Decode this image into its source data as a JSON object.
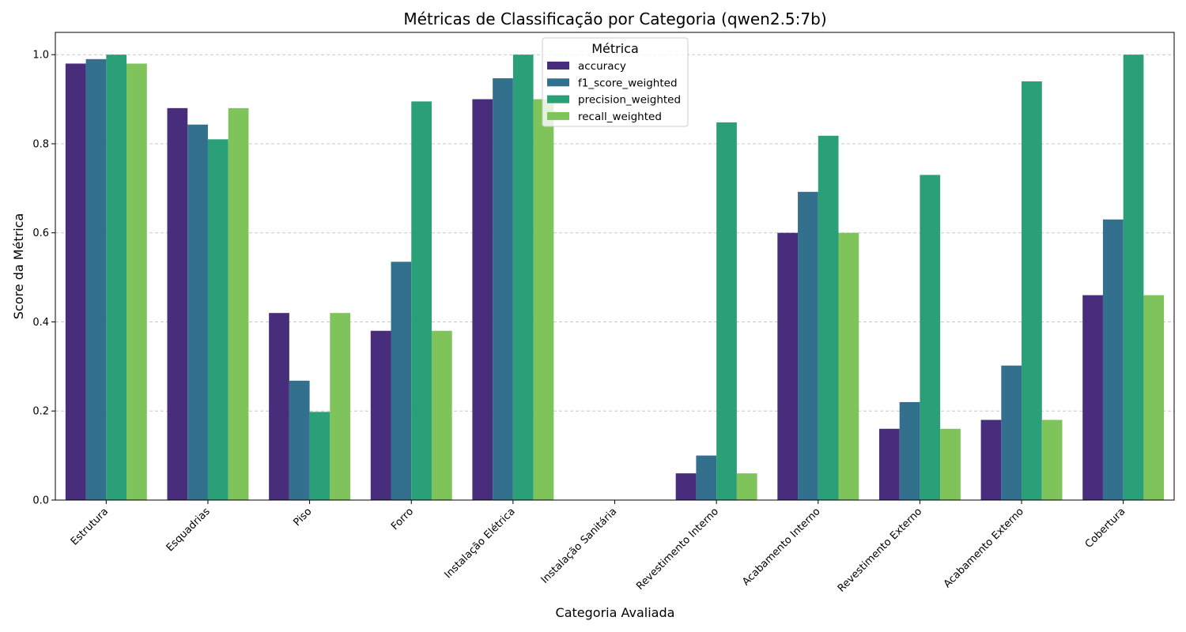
{
  "chart_data": {
    "type": "bar",
    "title": "Métricas de Classificação por Categoria (qwen2.5:7b)",
    "xlabel": "Categoria Avaliada",
    "ylabel": "Score da Métrica",
    "ylim": [
      0,
      1.05
    ],
    "yticks": [
      "0.0",
      "0.2",
      "0.4",
      "0.6",
      "0.8",
      "1.0"
    ],
    "grid": "y-dashed",
    "legend_title": "Métrica",
    "legend_position": "top-center",
    "categories": [
      "Estrutura",
      "Esquadrias",
      "Piso",
      "Forro",
      "Instalação Elétrica",
      "Instalação Sanitária",
      "Revestimento Interno",
      "Acabamento Interno",
      "Revestimento Externo",
      "Acabamento Externo",
      "Cobertura"
    ],
    "series": [
      {
        "name": "accuracy",
        "color": "#472d7b",
        "values": [
          0.98,
          0.88,
          0.42,
          0.38,
          0.9,
          0.0,
          0.06,
          0.6,
          0.16,
          0.18,
          0.46
        ]
      },
      {
        "name": "f1_score_weighted",
        "color": "#33708e",
        "values": [
          0.99,
          0.843,
          0.268,
          0.535,
          0.947,
          0.0,
          0.1,
          0.692,
          0.22,
          0.302,
          0.63
        ]
      },
      {
        "name": "precision_weighted",
        "color": "#2ba078",
        "values": [
          1.0,
          0.81,
          0.198,
          0.895,
          1.0,
          0.0,
          0.848,
          0.818,
          0.73,
          0.94,
          1.0
        ]
      },
      {
        "name": "recall_weighted",
        "color": "#7ec45a",
        "values": [
          0.98,
          0.88,
          0.42,
          0.38,
          0.9,
          0.0,
          0.06,
          0.6,
          0.16,
          0.18,
          0.46
        ]
      }
    ]
  }
}
